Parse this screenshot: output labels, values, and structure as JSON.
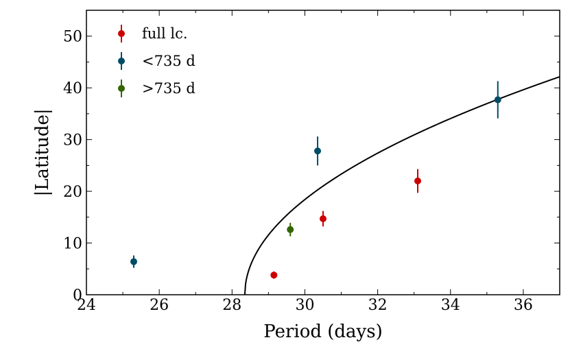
{
  "chart_data": {
    "type": "scatter",
    "title": "",
    "xlabel": "Period (days)",
    "ylabel": "|Latitude|",
    "xlim": [
      24,
      37
    ],
    "ylim": [
      0,
      55
    ],
    "xticks": [
      24,
      26,
      28,
      30,
      32,
      34,
      36
    ],
    "yticks": [
      0,
      10,
      20,
      30,
      40,
      50
    ],
    "legend_position": "top-left",
    "series": [
      {
        "name": "full lc.",
        "color": "#cc0000",
        "points": [
          {
            "x": 29.15,
            "y": 3.8,
            "err": 0.7
          },
          {
            "x": 30.5,
            "y": 14.7,
            "err": 1.5
          },
          {
            "x": 33.1,
            "y": 22.0,
            "err": 2.3
          }
        ]
      },
      {
        "name": "<735 d",
        "color": "#004c66",
        "points": [
          {
            "x": 25.3,
            "y": 6.4,
            "err": 1.2
          },
          {
            "x": 30.35,
            "y": 27.8,
            "err": 2.8
          },
          {
            "x": 35.3,
            "y": 37.7,
            "err": 3.6
          }
        ]
      },
      {
        "name": ">735 d",
        "color": "#336600",
        "points": [
          {
            "x": 29.6,
            "y": 12.6,
            "err": 1.3
          }
        ]
      }
    ],
    "fit_curve": {
      "color": "#000000",
      "x0": 28.35,
      "coefficient": 14.33,
      "form": "y = coefficient * sqrt(x - x0)"
    }
  }
}
